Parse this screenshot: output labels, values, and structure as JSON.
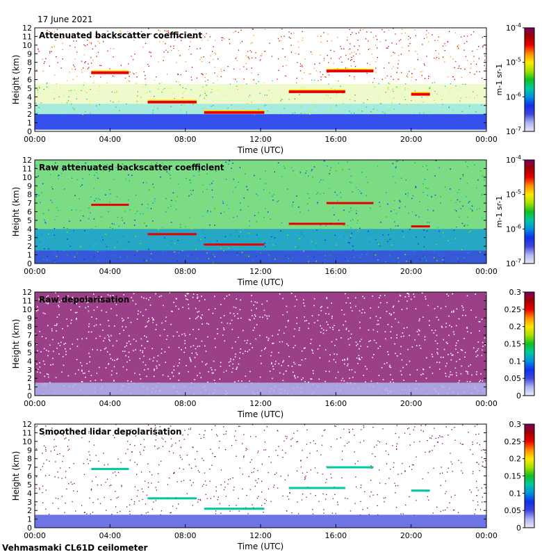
{
  "header": {
    "date": "17 June 2021"
  },
  "footer": {
    "site": "Vehmasmaki CL61D ceilometer"
  },
  "colors": {
    "jet": [
      "#e8e8f8",
      "#b0b4f0",
      "#3c46dc",
      "#1030e8",
      "#0090e0",
      "#00c8a0",
      "#10c020",
      "#a8e000",
      "#ffe800",
      "#ff8c00",
      "#e80000",
      "#a00000",
      "#7a0060"
    ],
    "frame": "#000000"
  },
  "chart_data": [
    {
      "type": "heatmap",
      "title": "Attenuated backscatter coefficient",
      "xlabel": "Time (UTC)",
      "ylabel": "Height (km)",
      "x_ticks": [
        "00:00",
        "04:00",
        "08:00",
        "12:00",
        "16:00",
        "20:00",
        "00:00"
      ],
      "y_ticks": [
        "0",
        "1",
        "2",
        "3",
        "4",
        "5",
        "6",
        "7",
        "8",
        "9",
        "10",
        "11",
        "12"
      ],
      "ylim": [
        0,
        12
      ],
      "xlim_hours": [
        0,
        24
      ],
      "colorbar": {
        "scale": "log",
        "min": 1e-07,
        "max": 0.0001,
        "ticks": [
          "10-7",
          "10-6",
          "10-5",
          "10-4"
        ],
        "unit": "m-1 sr-1"
      },
      "features": [
        {
          "kind": "boundary_layer",
          "height_km": [
            0.2,
            2.0
          ]
        },
        {
          "kind": "cloud_layer",
          "hours": [
            3.0,
            5.0
          ],
          "height_km": 6.8
        },
        {
          "kind": "cloud_layer",
          "hours": [
            6.0,
            8.6
          ],
          "height_km": 3.4
        },
        {
          "kind": "cloud_layer",
          "hours": [
            9.0,
            12.2
          ],
          "height_km": 2.2
        },
        {
          "kind": "cloud_layer",
          "hours": [
            13.5,
            16.5
          ],
          "height_km": 4.6
        },
        {
          "kind": "cloud_layer",
          "hours": [
            15.5,
            18.0
          ],
          "height_km": 7.0
        },
        {
          "kind": "cloud_layer",
          "hours": [
            20.0,
            21.0
          ],
          "height_km": 4.3
        }
      ]
    },
    {
      "type": "heatmap",
      "title": "Raw attenuated backscatter coefficient",
      "xlabel": "Time (UTC)",
      "ylabel": "Height (km)",
      "x_ticks": [
        "00:00",
        "04:00",
        "08:00",
        "12:00",
        "16:00",
        "20:00",
        "00:00"
      ],
      "y_ticks": [
        "0",
        "1",
        "2",
        "3",
        "4",
        "5",
        "6",
        "7",
        "8",
        "9",
        "10",
        "11",
        "12"
      ],
      "ylim": [
        0,
        12
      ],
      "xlim_hours": [
        0,
        24
      ],
      "colorbar": {
        "scale": "log",
        "min": 1e-07,
        "max": 0.0001,
        "ticks": [
          "10-7",
          "10-6",
          "10-5",
          "10-4"
        ],
        "unit": "m-1 sr-1"
      }
    },
    {
      "type": "heatmap",
      "title": "Raw depolarisation",
      "xlabel": "Time (UTC)",
      "ylabel": "Height (km)",
      "x_ticks": [
        "00:00",
        "04:00",
        "08:00",
        "12:00",
        "16:00",
        "20:00",
        "00:00"
      ],
      "y_ticks": [
        "0",
        "1",
        "2",
        "3",
        "4",
        "5",
        "6",
        "7",
        "8",
        "9",
        "10",
        "11",
        "12"
      ],
      "ylim": [
        0,
        12
      ],
      "xlim_hours": [
        0,
        24
      ],
      "colorbar": {
        "scale": "linear",
        "min": 0,
        "max": 0.3,
        "ticks": [
          "0",
          "0.05",
          "0.1",
          "0.15",
          "0.2",
          "0.25",
          "0.3"
        ]
      }
    },
    {
      "type": "heatmap",
      "title": "Smoothed lidar depolarisation",
      "xlabel": "Time (UTC)",
      "ylabel": "Height (km)",
      "x_ticks": [
        "00:00",
        "04:00",
        "08:00",
        "12:00",
        "16:00",
        "20:00",
        "00:00"
      ],
      "y_ticks": [
        "0",
        "1",
        "2",
        "3",
        "4",
        "5",
        "6",
        "7",
        "8",
        "9",
        "10",
        "11",
        "12"
      ],
      "ylim": [
        0,
        12
      ],
      "xlim_hours": [
        0,
        24
      ],
      "colorbar": {
        "scale": "linear",
        "min": 0,
        "max": 0.3,
        "ticks": [
          "0",
          "0.05",
          "0.1",
          "0.15",
          "0.2",
          "0.25",
          "0.3"
        ]
      }
    }
  ]
}
